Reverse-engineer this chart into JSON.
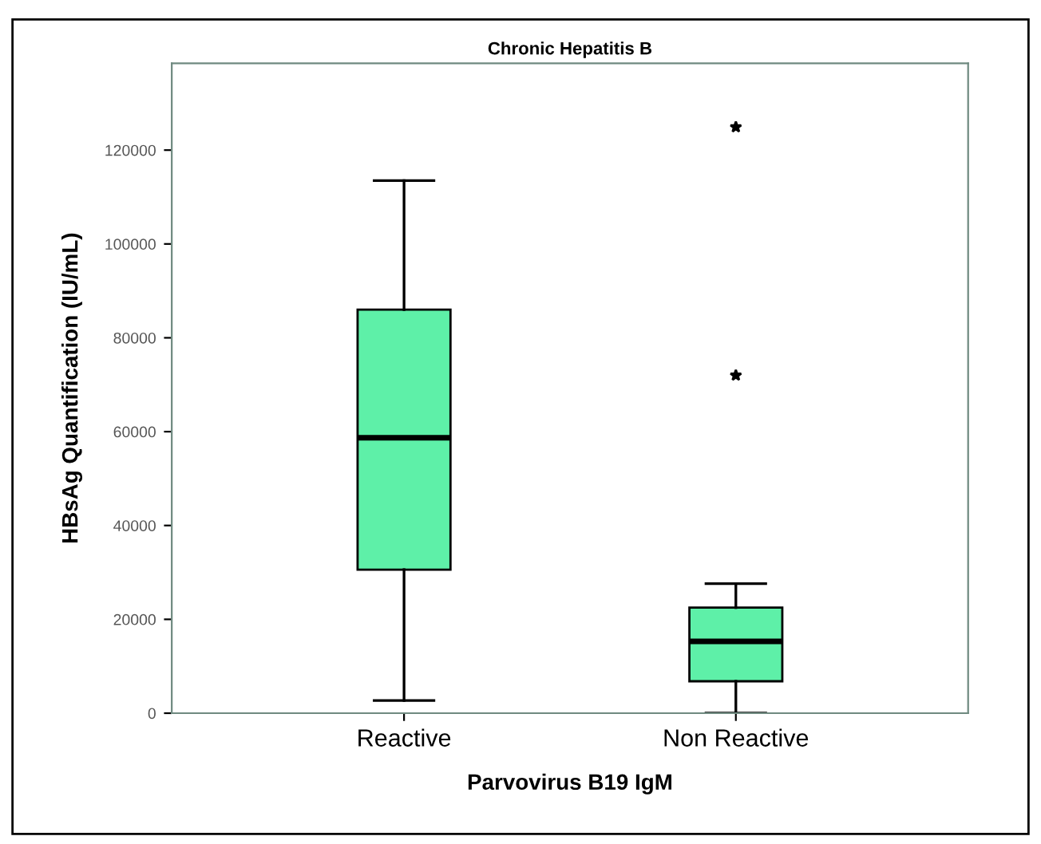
{
  "chart_data": {
    "type": "box",
    "title": "Chronic Hepatitis B",
    "xlabel": "Parvovirus B19 IgM",
    "ylabel": "HBsAg Quantification (IU/mL)",
    "categories": [
      "Reactive",
      "Non Reactive"
    ],
    "boxes": [
      {
        "low": 2700,
        "q1": 30600,
        "median": 58700,
        "q3": 86000,
        "high": 113500
      },
      {
        "low": 0,
        "q1": 6800,
        "median": 15300,
        "q3": 22500,
        "high": 27600,
        "outliers": [
          72000,
          124900
        ]
      }
    ],
    "color": "#5ef0a8",
    "marker": "star",
    "ylim": [
      0,
      138500
    ],
    "yticks": [
      0,
      20000,
      40000,
      60000,
      80000,
      100000,
      120000
    ],
    "grid": false,
    "legend": false
  }
}
